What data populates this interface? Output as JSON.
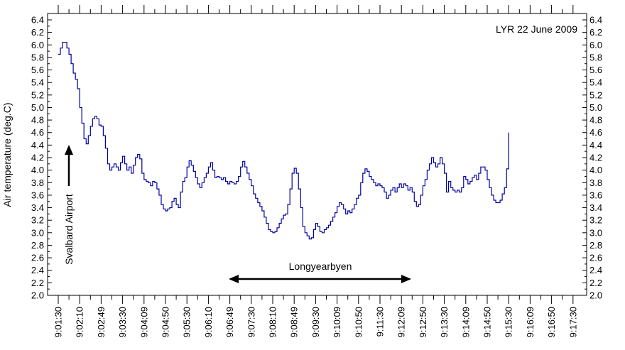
{
  "chart_data": {
    "type": "line",
    "title": "LYR 22 June 2009",
    "ylabel": "Air temperature (deg.C)",
    "xlabel": "",
    "ylim": [
      2.0,
      6.4
    ],
    "y_ticks": [
      "2.0",
      "2.2",
      "2.4",
      "2.6",
      "2.8",
      "3.0",
      "3.2",
      "3.4",
      "3.6",
      "3.8",
      "4.0",
      "4.2",
      "4.4",
      "4.6",
      "4.8",
      "5.0",
      "5.2",
      "5.4",
      "5.6",
      "5.8",
      "6.0",
      "6.2",
      "6.4"
    ],
    "x_tick_labels": [
      "9:01:30",
      "9:02:10",
      "9:02:49",
      "9:03:30",
      "9:04:09",
      "9:04:50",
      "9:05:30",
      "9:06:10",
      "9:06:49",
      "9:07:30",
      "9:08:10",
      "9:08:49",
      "9:09:30",
      "9:10:09",
      "9:10:50",
      "9:11:30",
      "9:12:09",
      "9:12:50",
      "9:13:30",
      "9:14:09",
      "9:14:50",
      "9:15:30",
      "9:16:09",
      "9:16:50",
      "9:17:30"
    ],
    "grid": false,
    "line_color": "#0000a0",
    "annotations": {
      "start_label": "Svalbard Airport",
      "range_label": "Longyearbyen"
    },
    "series": [
      {
        "values": [
          [
            0.0,
            5.85
          ],
          [
            0.1,
            5.95
          ],
          [
            0.2,
            6.04
          ],
          [
            0.3,
            6.04
          ],
          [
            0.4,
            5.95
          ],
          [
            0.5,
            5.85
          ],
          [
            0.6,
            5.7
          ],
          [
            0.7,
            5.55
          ],
          [
            0.8,
            5.45
          ],
          [
            0.9,
            5.3
          ],
          [
            1.0,
            5.0
          ],
          [
            1.1,
            4.75
          ],
          [
            1.2,
            4.5
          ],
          [
            1.3,
            4.42
          ],
          [
            1.4,
            4.55
          ],
          [
            1.5,
            4.7
          ],
          [
            1.6,
            4.82
          ],
          [
            1.7,
            4.86
          ],
          [
            1.8,
            4.82
          ],
          [
            1.9,
            4.72
          ],
          [
            2.0,
            4.7
          ],
          [
            2.1,
            4.55
          ],
          [
            2.2,
            4.35
          ],
          [
            2.3,
            4.1
          ],
          [
            2.4,
            4.0
          ],
          [
            2.5,
            4.05
          ],
          [
            2.6,
            4.1
          ],
          [
            2.7,
            4.05
          ],
          [
            2.8,
            4.0
          ],
          [
            2.9,
            4.12
          ],
          [
            3.0,
            4.22
          ],
          [
            3.1,
            4.1
          ],
          [
            3.2,
            4.0
          ],
          [
            3.3,
            4.05
          ],
          [
            3.4,
            3.95
          ],
          [
            3.5,
            4.08
          ],
          [
            3.6,
            4.2
          ],
          [
            3.7,
            4.25
          ],
          [
            3.8,
            4.18
          ],
          [
            3.9,
            3.95
          ],
          [
            4.0,
            3.85
          ],
          [
            4.1,
            3.82
          ],
          [
            4.2,
            3.8
          ],
          [
            4.3,
            3.75
          ],
          [
            4.4,
            3.82
          ],
          [
            4.5,
            3.8
          ],
          [
            4.6,
            3.7
          ],
          [
            4.7,
            3.6
          ],
          [
            4.8,
            3.45
          ],
          [
            4.9,
            3.38
          ],
          [
            5.0,
            3.35
          ],
          [
            5.1,
            3.38
          ],
          [
            5.2,
            3.4
          ],
          [
            5.3,
            3.5
          ],
          [
            5.4,
            3.55
          ],
          [
            5.5,
            3.45
          ],
          [
            5.6,
            3.4
          ],
          [
            5.7,
            3.65
          ],
          [
            5.8,
            3.82
          ],
          [
            5.9,
            3.88
          ],
          [
            6.0,
            4.05
          ],
          [
            6.1,
            4.15
          ],
          [
            6.2,
            4.08
          ],
          [
            6.3,
            3.98
          ],
          [
            6.4,
            3.88
          ],
          [
            6.5,
            3.78
          ],
          [
            6.6,
            3.72
          ],
          [
            6.7,
            3.8
          ],
          [
            6.8,
            3.88
          ],
          [
            6.9,
            3.95
          ],
          [
            7.0,
            4.05
          ],
          [
            7.1,
            4.12
          ],
          [
            7.2,
            4.0
          ],
          [
            7.3,
            3.88
          ],
          [
            7.4,
            3.9
          ],
          [
            7.5,
            3.88
          ],
          [
            7.6,
            3.85
          ],
          [
            7.7,
            3.88
          ],
          [
            7.8,
            3.82
          ],
          [
            7.9,
            3.78
          ],
          [
            8.0,
            3.82
          ],
          [
            8.1,
            3.8
          ],
          [
            8.2,
            3.78
          ],
          [
            8.3,
            3.82
          ],
          [
            8.4,
            3.9
          ],
          [
            8.5,
            4.05
          ],
          [
            8.6,
            4.14
          ],
          [
            8.7,
            4.05
          ],
          [
            8.8,
            3.95
          ],
          [
            8.9,
            3.85
          ],
          [
            9.0,
            3.75
          ],
          [
            9.1,
            3.62
          ],
          [
            9.2,
            3.55
          ],
          [
            9.3,
            3.48
          ],
          [
            9.4,
            3.42
          ],
          [
            9.5,
            3.35
          ],
          [
            9.6,
            3.25
          ],
          [
            9.7,
            3.15
          ],
          [
            9.8,
            3.05
          ],
          [
            9.9,
            3.02
          ],
          [
            10.0,
            3.0
          ],
          [
            10.1,
            3.02
          ],
          [
            10.2,
            3.08
          ],
          [
            10.3,
            3.15
          ],
          [
            10.4,
            3.22
          ],
          [
            10.5,
            3.28
          ],
          [
            10.6,
            3.3
          ],
          [
            10.7,
            3.45
          ],
          [
            10.8,
            3.7
          ],
          [
            10.9,
            3.95
          ],
          [
            11.0,
            4.03
          ],
          [
            11.1,
            3.95
          ],
          [
            11.2,
            3.7
          ],
          [
            11.3,
            3.4
          ],
          [
            11.4,
            3.1
          ],
          [
            11.5,
            3.0
          ],
          [
            11.6,
            2.95
          ],
          [
            11.7,
            2.9
          ],
          [
            11.8,
            2.92
          ],
          [
            11.9,
            3.05
          ],
          [
            12.0,
            3.15
          ],
          [
            12.1,
            3.1
          ],
          [
            12.2,
            3.02
          ],
          [
            12.3,
            3.0
          ],
          [
            12.4,
            3.05
          ],
          [
            12.5,
            3.08
          ],
          [
            12.6,
            3.12
          ],
          [
            12.7,
            3.18
          ],
          [
            12.8,
            3.25
          ],
          [
            12.9,
            3.32
          ],
          [
            13.0,
            3.42
          ],
          [
            13.1,
            3.48
          ],
          [
            13.2,
            3.45
          ],
          [
            13.3,
            3.38
          ],
          [
            13.4,
            3.3
          ],
          [
            13.5,
            3.35
          ],
          [
            13.6,
            3.32
          ],
          [
            13.7,
            3.38
          ],
          [
            13.8,
            3.45
          ],
          [
            13.9,
            3.55
          ],
          [
            14.0,
            3.6
          ],
          [
            14.1,
            3.8
          ],
          [
            14.2,
            3.95
          ],
          [
            14.3,
            4.02
          ],
          [
            14.4,
            3.98
          ],
          [
            14.5,
            3.9
          ],
          [
            14.6,
            3.85
          ],
          [
            14.7,
            3.8
          ],
          [
            14.8,
            3.75
          ],
          [
            14.9,
            3.78
          ],
          [
            15.0,
            3.75
          ],
          [
            15.1,
            3.72
          ],
          [
            15.2,
            3.65
          ],
          [
            15.3,
            3.55
          ],
          [
            15.4,
            3.6
          ],
          [
            15.5,
            3.68
          ],
          [
            15.6,
            3.72
          ],
          [
            15.7,
            3.65
          ],
          [
            15.8,
            3.72
          ],
          [
            15.9,
            3.78
          ],
          [
            16.0,
            3.72
          ],
          [
            16.1,
            3.78
          ],
          [
            16.2,
            3.75
          ],
          [
            16.3,
            3.68
          ],
          [
            16.4,
            3.72
          ],
          [
            16.5,
            3.65
          ],
          [
            16.6,
            3.5
          ],
          [
            16.7,
            3.42
          ],
          [
            16.8,
            3.45
          ],
          [
            16.9,
            3.6
          ],
          [
            17.0,
            3.75
          ],
          [
            17.1,
            3.85
          ],
          [
            17.2,
            4.0
          ],
          [
            17.3,
            4.1
          ],
          [
            17.4,
            4.2
          ],
          [
            17.5,
            4.12
          ],
          [
            17.6,
            4.05
          ],
          [
            17.7,
            4.1
          ],
          [
            17.8,
            4.2
          ],
          [
            17.9,
            4.1
          ],
          [
            18.0,
            3.95
          ],
          [
            18.1,
            3.65
          ],
          [
            18.2,
            3.82
          ],
          [
            18.3,
            3.72
          ],
          [
            18.4,
            3.68
          ],
          [
            18.5,
            3.65
          ],
          [
            18.6,
            3.68
          ],
          [
            18.7,
            3.65
          ],
          [
            18.8,
            3.72
          ],
          [
            18.9,
            3.9
          ],
          [
            19.0,
            3.85
          ],
          [
            19.1,
            3.78
          ],
          [
            19.2,
            3.82
          ],
          [
            19.3,
            3.88
          ],
          [
            19.4,
            3.92
          ],
          [
            19.5,
            3.85
          ],
          [
            19.6,
            3.95
          ],
          [
            19.7,
            4.05
          ],
          [
            19.8,
            4.05
          ],
          [
            19.9,
            4.0
          ],
          [
            20.0,
            3.85
          ],
          [
            20.1,
            3.72
          ],
          [
            20.2,
            3.6
          ],
          [
            20.3,
            3.52
          ],
          [
            20.4,
            3.48
          ],
          [
            20.5,
            3.48
          ],
          [
            20.6,
            3.52
          ],
          [
            20.7,
            3.62
          ],
          [
            20.8,
            3.72
          ],
          [
            20.9,
            4.02
          ],
          [
            21.0,
            4.6
          ]
        ]
      }
    ]
  }
}
